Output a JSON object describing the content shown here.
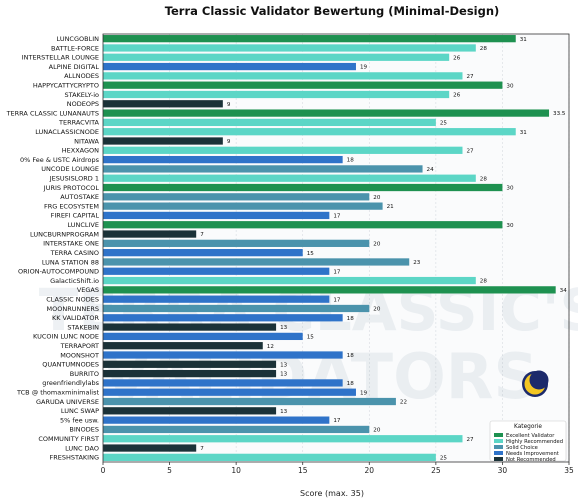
{
  "chart_data": {
    "type": "bar",
    "orientation": "horizontal",
    "title": "Terra Classic Validator Bewertung (Minimal-Design)",
    "xlabel": "Score (max. 35)",
    "ylabel": "",
    "xlim": [
      0,
      35
    ],
    "xticks": [
      0,
      5,
      10,
      15,
      20,
      25,
      30,
      35
    ],
    "grid": true,
    "watermark": "TERRA CLASSIC'S VALIDATORS",
    "legend": {
      "title": "Kategorie",
      "position": "bottom-right",
      "entries": [
        {
          "label": "Excellent Validator",
          "color": "#1e9150"
        },
        {
          "label": "Highly Recommended",
          "color": "#5cd6c6"
        },
        {
          "label": "Solid Choice",
          "color": "#4b93ac"
        },
        {
          "label": "Needs Improvement",
          "color": "#2f73c9"
        },
        {
          "label": "Not Recommended",
          "color": "#1b3238"
        }
      ]
    },
    "bars": [
      {
        "name": "LUNCGOBLIN",
        "value": 31,
        "label": "31",
        "category": 0
      },
      {
        "name": "BATTLE-FORCE",
        "value": 28,
        "label": "28",
        "category": 1
      },
      {
        "name": "INTERSTELLAR LOUNGE",
        "value": 26,
        "label": "26",
        "category": 1
      },
      {
        "name": "ALPINE DIGITAL",
        "value": 19,
        "label": "19",
        "category": 3
      },
      {
        "name": "ALLNODES",
        "value": 27,
        "label": "27",
        "category": 1
      },
      {
        "name": "HAPPYCATTYCRYPTO",
        "value": 30,
        "label": "30",
        "category": 0
      },
      {
        "name": "STAKELY-io",
        "value": 26,
        "label": "26",
        "category": 1
      },
      {
        "name": "NODEOPS",
        "value": 9,
        "label": "9",
        "category": 4
      },
      {
        "name": "TERRA CLASSIC LUNANAUTS",
        "value": 33.5,
        "label": "33.5",
        "category": 0
      },
      {
        "name": "TERRACVITA",
        "value": 25,
        "label": "25",
        "category": 1
      },
      {
        "name": "LUNACLASSICNODE",
        "value": 31,
        "label": "31",
        "category": 1
      },
      {
        "name": "NITAWA",
        "value": 9,
        "label": "9",
        "category": 4
      },
      {
        "name": "HEXXAGON",
        "value": 27,
        "label": "27",
        "category": 1
      },
      {
        "name": "0% Fee & USTC Airdrops",
        "value": 18,
        "label": "18",
        "category": 3
      },
      {
        "name": "UNCODE LOUNGE",
        "value": 24,
        "label": "24",
        "category": 2
      },
      {
        "name": "JESUSISLORD 1",
        "value": 28,
        "label": "28",
        "category": 1
      },
      {
        "name": "JURIS PROTOCOL",
        "value": 30,
        "label": "30",
        "category": 0
      },
      {
        "name": "AUTOSTAKE",
        "value": 20,
        "label": "20",
        "category": 2
      },
      {
        "name": "FRG ECOSYSTEM",
        "value": 21,
        "label": "21",
        "category": 2
      },
      {
        "name": "FIREFI CAPITAL",
        "value": 17,
        "label": "17",
        "category": 3
      },
      {
        "name": "LUNCLIVE",
        "value": 30,
        "label": "30",
        "category": 0
      },
      {
        "name": "LUNCBURNPROGRAM",
        "value": 7,
        "label": "7",
        "category": 4
      },
      {
        "name": "INTERSTAKE ONE",
        "value": 20,
        "label": "20",
        "category": 2
      },
      {
        "name": "TERRA CASINO",
        "value": 15,
        "label": "15",
        "category": 3
      },
      {
        "name": "LUNA STATION 88",
        "value": 23,
        "label": "23",
        "category": 2
      },
      {
        "name": "ORION-AUTOCOMPOUND",
        "value": 17,
        "label": "17",
        "category": 3
      },
      {
        "name": "GalacticShift.io",
        "value": 28,
        "label": "28",
        "category": 1
      },
      {
        "name": "VEGAS",
        "value": 34,
        "label": "34",
        "category": 0
      },
      {
        "name": "CLASSIC NODES",
        "value": 17,
        "label": "17",
        "category": 3
      },
      {
        "name": "MOONRUNNERS",
        "value": 20,
        "label": "20",
        "category": 2
      },
      {
        "name": "KK VALIDATOR",
        "value": 18,
        "label": "18",
        "category": 3
      },
      {
        "name": "STAKEBIN",
        "value": 13,
        "label": "13",
        "category": 4
      },
      {
        "name": "KUCOIN LUNC NODE",
        "value": 15,
        "label": "15",
        "category": 3
      },
      {
        "name": "TERRAPORT",
        "value": 12,
        "label": "12",
        "category": 4
      },
      {
        "name": "MOONSHOT",
        "value": 18,
        "label": "18",
        "category": 3
      },
      {
        "name": "QUANTUMNODES",
        "value": 13,
        "label": "13",
        "category": 4
      },
      {
        "name": "BURRITO",
        "value": 13,
        "label": "13",
        "category": 4
      },
      {
        "name": "greenfriendlylabs",
        "value": 18,
        "label": "18",
        "category": 3
      },
      {
        "name": "TCB @ thomaxminimalist",
        "value": 19,
        "label": "19",
        "category": 3
      },
      {
        "name": "GARUDA UNIVERSE",
        "value": 22,
        "label": "22",
        "category": 2
      },
      {
        "name": "LUNC SWAP",
        "value": 13,
        "label": "13",
        "category": 4
      },
      {
        "name": "5% fee usw.",
        "value": 17,
        "label": "17",
        "category": 3
      },
      {
        "name": "BINODES",
        "value": 20,
        "label": "20",
        "category": 2
      },
      {
        "name": "COMMUNITY FIRST",
        "value": 27,
        "label": "27",
        "category": 1
      },
      {
        "name": "LUNC DAO",
        "value": 7,
        "label": "7",
        "category": 4
      },
      {
        "name": "FRESHSTAKING",
        "value": 25,
        "label": "25",
        "category": 1
      }
    ]
  }
}
